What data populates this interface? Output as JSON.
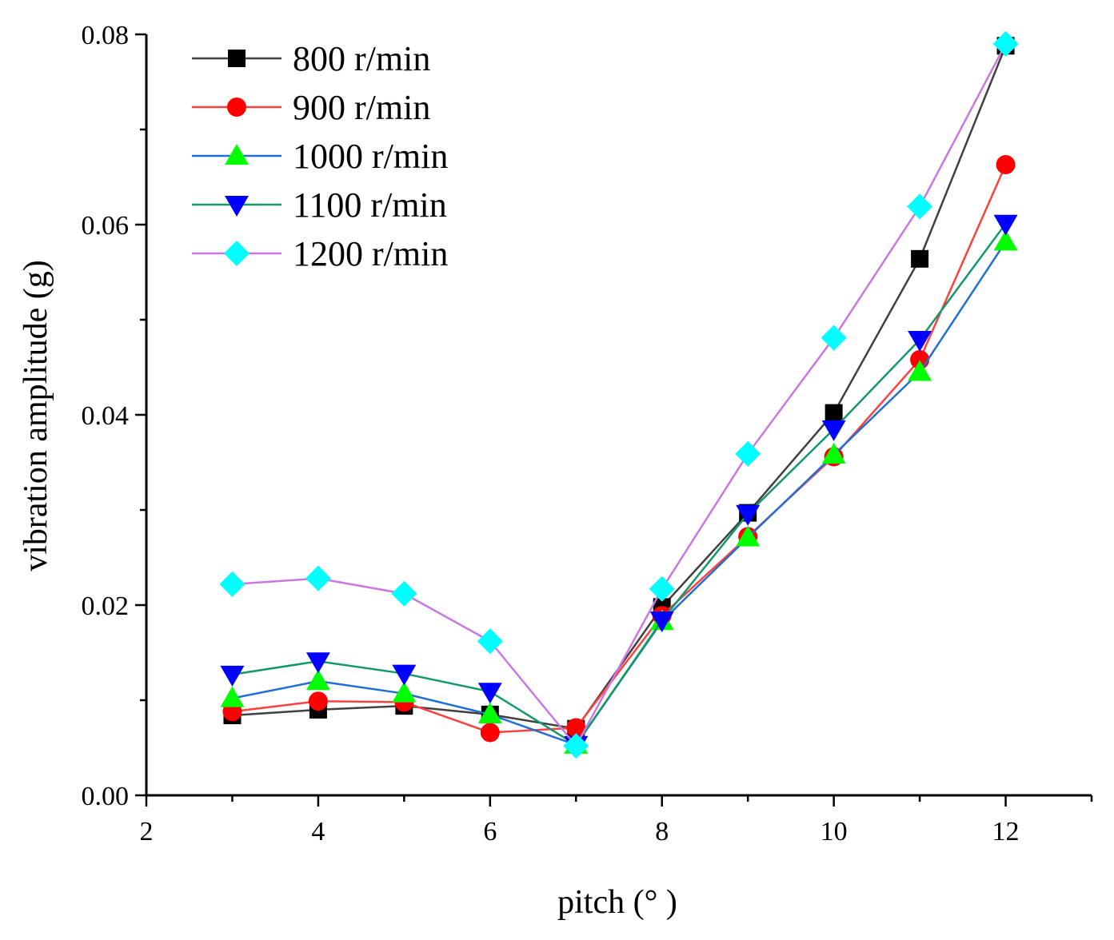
{
  "chart_data": {
    "type": "line",
    "title": "",
    "xlabel": "pitch (°  )",
    "ylabel": "vibration amplitude (g)",
    "xlim": [
      2,
      13
    ],
    "ylim": [
      0,
      0.08
    ],
    "xticks": [
      2,
      4,
      6,
      8,
      10,
      12
    ],
    "xtick_labels": [
      "2",
      "4",
      "6",
      "8",
      "10",
      "12"
    ],
    "yticks": [
      0,
      0.02,
      0.04,
      0.06,
      0.08
    ],
    "ytick_labels": [
      "0.00",
      "0.02",
      "0.04",
      "0.06",
      "0.08"
    ],
    "grid": false,
    "legend_position": "top-left",
    "x": [
      3,
      4,
      5,
      6,
      7,
      8,
      9,
      10,
      11,
      12
    ],
    "series": [
      {
        "name": "800 r/min",
        "line_color": "#404040",
        "marker_color": "#000000",
        "marker": "square",
        "values": [
          0.0084,
          0.009,
          0.0094,
          0.0085,
          0.007,
          0.0198,
          0.0297,
          0.0402,
          0.0564,
          0.0788
        ]
      },
      {
        "name": "900 r/min",
        "line_color": "#ff4040",
        "marker_color": "#ff0000",
        "marker": "circle",
        "values": [
          0.0088,
          0.0099,
          0.0098,
          0.0066,
          0.0071,
          0.0189,
          0.0272,
          0.0356,
          0.0458,
          0.0663
        ]
      },
      {
        "name": "1000 r/min",
        "line_color": "#1f6fd6",
        "marker_color": "#00ff00",
        "marker": "triangle-up",
        "values": [
          0.0102,
          0.012,
          0.0107,
          0.0085,
          0.0053,
          0.0183,
          0.0271,
          0.0358,
          0.0445,
          0.0582
        ]
      },
      {
        "name": "1100 r/min",
        "line_color": "#13986a",
        "marker_color": "#0000ff",
        "marker": "triangle-down",
        "values": [
          0.0127,
          0.0141,
          0.0128,
          0.0109,
          0.0053,
          0.0184,
          0.0296,
          0.0385,
          0.0479,
          0.0601
        ]
      },
      {
        "name": "1200 r/min",
        "line_color": "#c878e0",
        "marker_color": "#00ffff",
        "marker": "diamond",
        "values": [
          0.0222,
          0.0228,
          0.0212,
          0.0162,
          0.0052,
          0.0217,
          0.0359,
          0.0481,
          0.0619,
          0.079
        ]
      }
    ]
  }
}
